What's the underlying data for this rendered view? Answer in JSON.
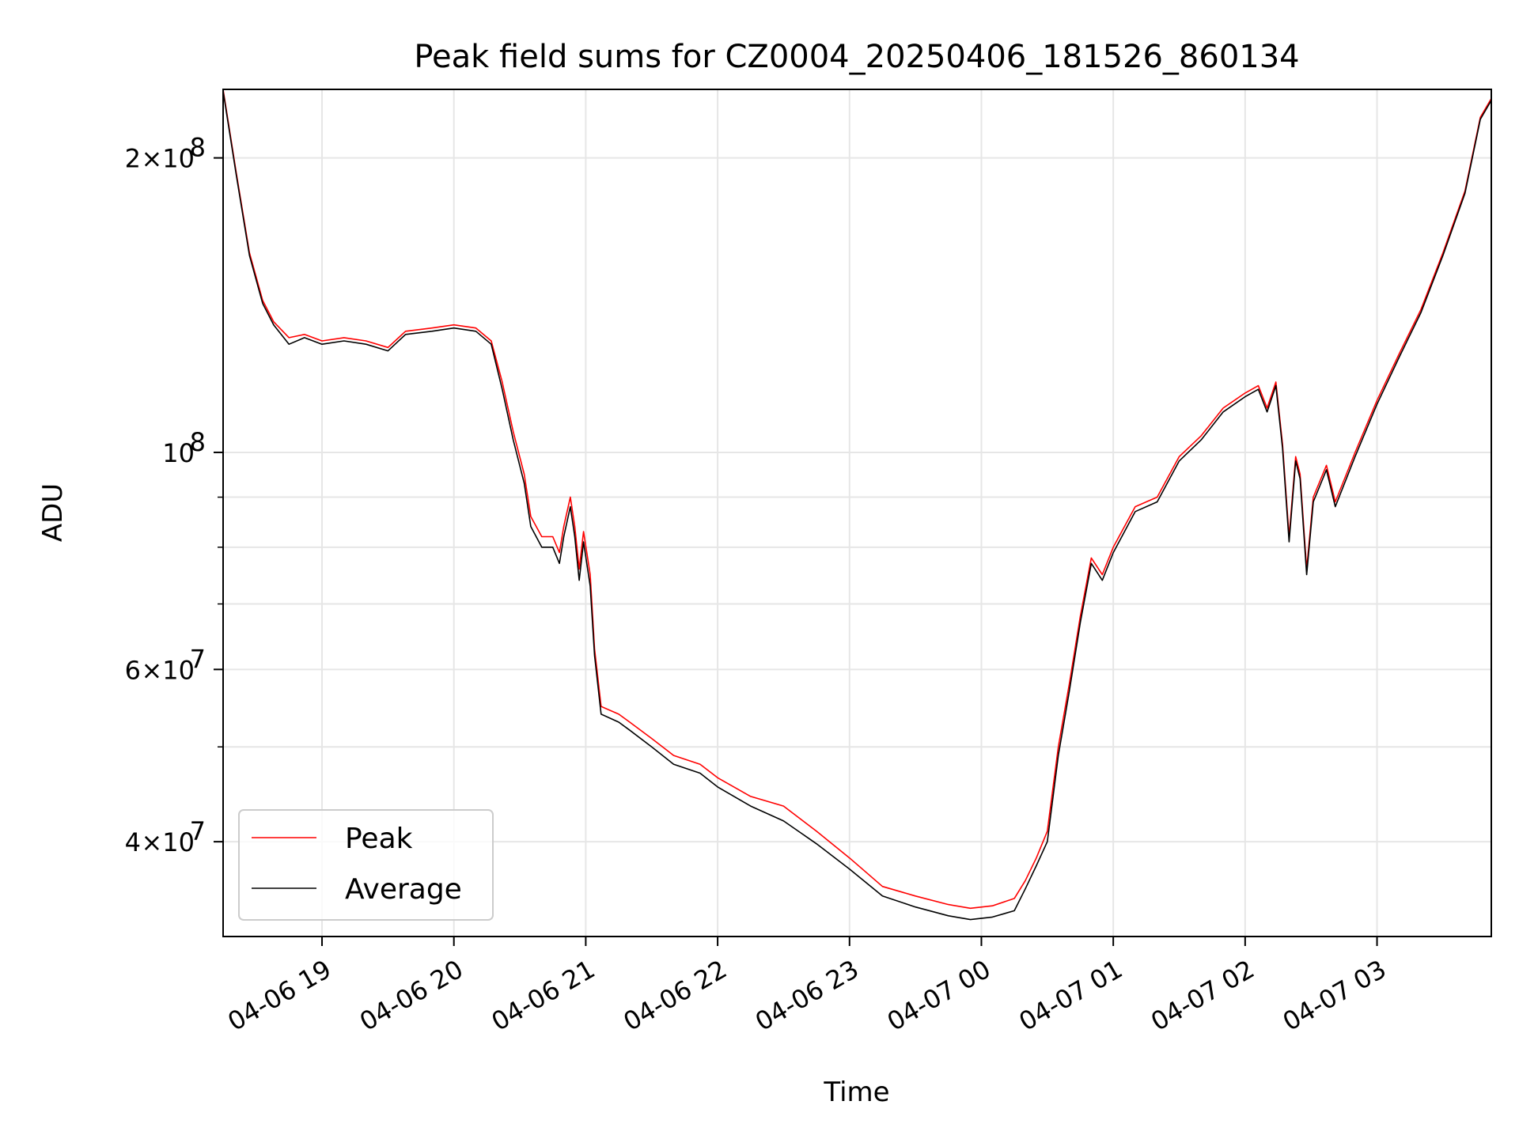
{
  "chart_data": {
    "type": "line",
    "title": "Peak field sums for CZ0004_20250406_181526_860134",
    "xlabel": "Time",
    "ylabel": "ADU",
    "yscale": "log",
    "xlim": [
      "2025-04-06 18:15",
      "2025-04-07 03:52"
    ],
    "ylim": [
      32000000,
      235000000
    ],
    "grid": true,
    "legend_position": "lower-left",
    "x_ticks": [
      {
        "t": "2025-04-06 19:00",
        "label": "04-06 19"
      },
      {
        "t": "2025-04-06 20:00",
        "label": "04-06 20"
      },
      {
        "t": "2025-04-06 21:00",
        "label": "04-06 21"
      },
      {
        "t": "2025-04-06 22:00",
        "label": "04-06 22"
      },
      {
        "t": "2025-04-06 23:00",
        "label": "04-06 23"
      },
      {
        "t": "2025-04-07 00:00",
        "label": "04-07 00"
      },
      {
        "t": "2025-04-07 01:00",
        "label": "04-07 01"
      },
      {
        "t": "2025-04-07 02:00",
        "label": "04-07 02"
      },
      {
        "t": "2025-04-07 03:00",
        "label": "04-07 03"
      }
    ],
    "y_ticks": [
      {
        "value": 200000000,
        "mant": "2",
        "exp": "8"
      },
      {
        "value": 100000000,
        "mant": "",
        "exp": "8"
      },
      {
        "value": 60000000,
        "mant": "6",
        "exp": "7"
      },
      {
        "value": 40000000,
        "mant": "4",
        "exp": "7"
      }
    ],
    "y_minor_ticks": [
      50000000,
      70000000,
      80000000,
      90000000
    ],
    "series": [
      {
        "name": "Peak",
        "color": "#ff0000",
        "points": [
          [
            "2025-04-06 18:15",
            235000000
          ],
          [
            "2025-04-06 18:21",
            193000000
          ],
          [
            "2025-04-06 18:27",
            160000000
          ],
          [
            "2025-04-06 18:33",
            143000000
          ],
          [
            "2025-04-06 18:38",
            136000000
          ],
          [
            "2025-04-06 18:45",
            131000000
          ],
          [
            "2025-04-06 18:52",
            132000000
          ],
          [
            "2025-04-06 19:00",
            130000000
          ],
          [
            "2025-04-06 19:10",
            131000000
          ],
          [
            "2025-04-06 19:20",
            130000000
          ],
          [
            "2025-04-06 19:30",
            128000000
          ],
          [
            "2025-04-06 19:38",
            133000000
          ],
          [
            "2025-04-06 19:50",
            134000000
          ],
          [
            "2025-04-06 20:00",
            135000000
          ],
          [
            "2025-04-06 20:10",
            134000000
          ],
          [
            "2025-04-06 20:17",
            130000000
          ],
          [
            "2025-04-06 20:22",
            118000000
          ],
          [
            "2025-04-06 20:27",
            105000000
          ],
          [
            "2025-04-06 20:32",
            95000000
          ],
          [
            "2025-04-06 20:35",
            86000000
          ],
          [
            "2025-04-06 20:40",
            82000000
          ],
          [
            "2025-04-06 20:45",
            82000000
          ],
          [
            "2025-04-06 20:48",
            79000000
          ],
          [
            "2025-04-06 20:50",
            84000000
          ],
          [
            "2025-04-06 20:53",
            90000000
          ],
          [
            "2025-04-06 20:55",
            84000000
          ],
          [
            "2025-04-06 20:57",
            76000000
          ],
          [
            "2025-04-06 20:59",
            83000000
          ],
          [
            "2025-04-06 21:02",
            75000000
          ],
          [
            "2025-04-06 21:04",
            63000000
          ],
          [
            "2025-04-06 21:07",
            55000000
          ],
          [
            "2025-04-06 21:15",
            54000000
          ],
          [
            "2025-04-06 21:20",
            53000000
          ],
          [
            "2025-04-06 21:30",
            51000000
          ],
          [
            "2025-04-06 21:40",
            49000000
          ],
          [
            "2025-04-06 21:52",
            48000000
          ],
          [
            "2025-04-06 22:00",
            46500000
          ],
          [
            "2025-04-06 22:15",
            44500000
          ],
          [
            "2025-04-06 22:30",
            43500000
          ],
          [
            "2025-04-06 22:45",
            41000000
          ],
          [
            "2025-04-06 23:00",
            38500000
          ],
          [
            "2025-04-06 23:15",
            36000000
          ],
          [
            "2025-04-06 23:30",
            35200000
          ],
          [
            "2025-04-06 23:45",
            34500000
          ],
          [
            "2025-04-06 23:55",
            34200000
          ],
          [
            "2025-04-07 00:05",
            34400000
          ],
          [
            "2025-04-07 00:15",
            35000000
          ],
          [
            "2025-04-07 00:20",
            36500000
          ],
          [
            "2025-04-07 00:25",
            38500000
          ],
          [
            "2025-04-07 00:30",
            41000000
          ],
          [
            "2025-04-07 00:35",
            50000000
          ],
          [
            "2025-04-07 00:40",
            58000000
          ],
          [
            "2025-04-07 00:45",
            68000000
          ],
          [
            "2025-04-07 00:50",
            78000000
          ],
          [
            "2025-04-07 00:55",
            75000000
          ],
          [
            "2025-04-07 01:00",
            80000000
          ],
          [
            "2025-04-07 01:10",
            88000000
          ],
          [
            "2025-04-07 01:20",
            90000000
          ],
          [
            "2025-04-07 01:30",
            99000000
          ],
          [
            "2025-04-07 01:40",
            104000000
          ],
          [
            "2025-04-07 01:50",
            111000000
          ],
          [
            "2025-04-07 02:00",
            115000000
          ],
          [
            "2025-04-07 02:06",
            117000000
          ],
          [
            "2025-04-07 02:10",
            111000000
          ],
          [
            "2025-04-07 02:14",
            118000000
          ],
          [
            "2025-04-07 02:17",
            102000000
          ],
          [
            "2025-04-07 02:20",
            82000000
          ],
          [
            "2025-04-07 02:23",
            99000000
          ],
          [
            "2025-04-07 02:25",
            95000000
          ],
          [
            "2025-04-07 02:28",
            76000000
          ],
          [
            "2025-04-07 02:31",
            90000000
          ],
          [
            "2025-04-07 02:37",
            97000000
          ],
          [
            "2025-04-07 02:41",
            89000000
          ],
          [
            "2025-04-07 02:50",
            100000000
          ],
          [
            "2025-04-07 03:00",
            113000000
          ],
          [
            "2025-04-07 03:10",
            126000000
          ],
          [
            "2025-04-07 03:20",
            140000000
          ],
          [
            "2025-04-07 03:30",
            160000000
          ],
          [
            "2025-04-07 03:40",
            185000000
          ],
          [
            "2025-04-07 03:47",
            220000000
          ],
          [
            "2025-04-07 03:52",
            230000000
          ]
        ]
      },
      {
        "name": "Average",
        "color": "#000000",
        "points": [
          [
            "2025-04-06 18:15",
            234000000
          ],
          [
            "2025-04-06 18:21",
            192000000
          ],
          [
            "2025-04-06 18:27",
            159000000
          ],
          [
            "2025-04-06 18:33",
            142000000
          ],
          [
            "2025-04-06 18:38",
            135000000
          ],
          [
            "2025-04-06 18:45",
            129000000
          ],
          [
            "2025-04-06 18:52",
            131000000
          ],
          [
            "2025-04-06 19:00",
            129000000
          ],
          [
            "2025-04-06 19:10",
            130000000
          ],
          [
            "2025-04-06 19:20",
            129000000
          ],
          [
            "2025-04-06 19:30",
            127000000
          ],
          [
            "2025-04-06 19:38",
            132000000
          ],
          [
            "2025-04-06 19:50",
            133000000
          ],
          [
            "2025-04-06 20:00",
            134000000
          ],
          [
            "2025-04-06 20:10",
            133000000
          ],
          [
            "2025-04-06 20:17",
            129000000
          ],
          [
            "2025-04-06 20:22",
            116000000
          ],
          [
            "2025-04-06 20:27",
            103000000
          ],
          [
            "2025-04-06 20:32",
            93000000
          ],
          [
            "2025-04-06 20:35",
            84000000
          ],
          [
            "2025-04-06 20:40",
            80000000
          ],
          [
            "2025-04-06 20:45",
            80000000
          ],
          [
            "2025-04-06 20:48",
            77000000
          ],
          [
            "2025-04-06 20:50",
            82000000
          ],
          [
            "2025-04-06 20:53",
            88000000
          ],
          [
            "2025-04-06 20:55",
            82000000
          ],
          [
            "2025-04-06 20:57",
            74000000
          ],
          [
            "2025-04-06 20:59",
            81000000
          ],
          [
            "2025-04-06 21:02",
            73000000
          ],
          [
            "2025-04-06 21:04",
            62000000
          ],
          [
            "2025-04-06 21:07",
            54000000
          ],
          [
            "2025-04-06 21:15",
            53000000
          ],
          [
            "2025-04-06 21:20",
            52000000
          ],
          [
            "2025-04-06 21:30",
            50000000
          ],
          [
            "2025-04-06 21:40",
            48000000
          ],
          [
            "2025-04-06 21:52",
            47000000
          ],
          [
            "2025-04-06 22:00",
            45500000
          ],
          [
            "2025-04-06 22:15",
            43500000
          ],
          [
            "2025-04-06 22:30",
            42000000
          ],
          [
            "2025-04-06 22:45",
            39800000
          ],
          [
            "2025-04-06 23:00",
            37500000
          ],
          [
            "2025-04-06 23:15",
            35200000
          ],
          [
            "2025-04-06 23:30",
            34300000
          ],
          [
            "2025-04-06 23:45",
            33600000
          ],
          [
            "2025-04-06 23:55",
            33300000
          ],
          [
            "2025-04-07 00:05",
            33500000
          ],
          [
            "2025-04-07 00:15",
            34000000
          ],
          [
            "2025-04-07 00:20",
            35800000
          ],
          [
            "2025-04-07 00:25",
            37800000
          ],
          [
            "2025-04-07 00:30",
            40000000
          ],
          [
            "2025-04-07 00:35",
            49000000
          ],
          [
            "2025-04-07 00:40",
            57000000
          ],
          [
            "2025-04-07 00:45",
            67000000
          ],
          [
            "2025-04-07 00:50",
            77000000
          ],
          [
            "2025-04-07 00:55",
            74000000
          ],
          [
            "2025-04-07 01:00",
            79000000
          ],
          [
            "2025-04-07 01:10",
            87000000
          ],
          [
            "2025-04-07 01:20",
            89000000
          ],
          [
            "2025-04-07 01:30",
            98000000
          ],
          [
            "2025-04-07 01:40",
            103000000
          ],
          [
            "2025-04-07 01:50",
            110000000
          ],
          [
            "2025-04-07 02:00",
            114000000
          ],
          [
            "2025-04-07 02:06",
            116000000
          ],
          [
            "2025-04-07 02:10",
            110000000
          ],
          [
            "2025-04-07 02:14",
            117000000
          ],
          [
            "2025-04-07 02:17",
            101000000
          ],
          [
            "2025-04-07 02:20",
            81000000
          ],
          [
            "2025-04-07 02:23",
            98000000
          ],
          [
            "2025-04-07 02:25",
            94000000
          ],
          [
            "2025-04-07 02:28",
            75000000
          ],
          [
            "2025-04-07 02:31",
            89000000
          ],
          [
            "2025-04-07 02:37",
            96000000
          ],
          [
            "2025-04-07 02:41",
            88000000
          ],
          [
            "2025-04-07 02:50",
            99000000
          ],
          [
            "2025-04-07 03:00",
            112000000
          ],
          [
            "2025-04-07 03:10",
            125000000
          ],
          [
            "2025-04-07 03:20",
            139000000
          ],
          [
            "2025-04-07 03:30",
            159000000
          ],
          [
            "2025-04-07 03:40",
            184000000
          ],
          [
            "2025-04-07 03:47",
            219000000
          ],
          [
            "2025-04-07 03:52",
            229000000
          ]
        ]
      }
    ]
  }
}
